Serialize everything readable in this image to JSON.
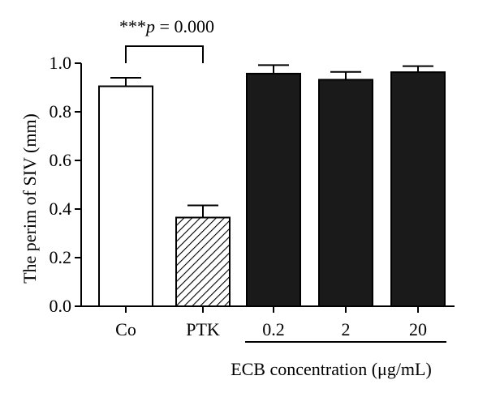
{
  "chart_data": {
    "type": "bar",
    "title": "",
    "xlabel": "",
    "ylabel": "The perim of SIV (mm)",
    "ylim": [
      0,
      1.0
    ],
    "yticks": [
      "0.0",
      "0.2",
      "0.4",
      "0.6",
      "0.8",
      "1.0"
    ],
    "grid": false,
    "categories": [
      "Co",
      "PTK",
      "0.2",
      "2",
      "20"
    ],
    "values": [
      0.905,
      0.365,
      0.957,
      0.932,
      0.963
    ],
    "errors": [
      0.035,
      0.05,
      0.035,
      0.032,
      0.025
    ],
    "bar_styles": [
      "white",
      "hatched",
      "black",
      "black",
      "black"
    ],
    "group_label": "ECB concentration (μg/mL)",
    "group_members": [
      2,
      3,
      4
    ],
    "annotation": {
      "stars": "***",
      "p_symbol": "p",
      "p_text": " = 0.000",
      "between": [
        0,
        1
      ]
    }
  },
  "colors": {
    "axis": "#000000",
    "bar_white": "#ffffff",
    "bar_black": "#1a1a1a"
  }
}
